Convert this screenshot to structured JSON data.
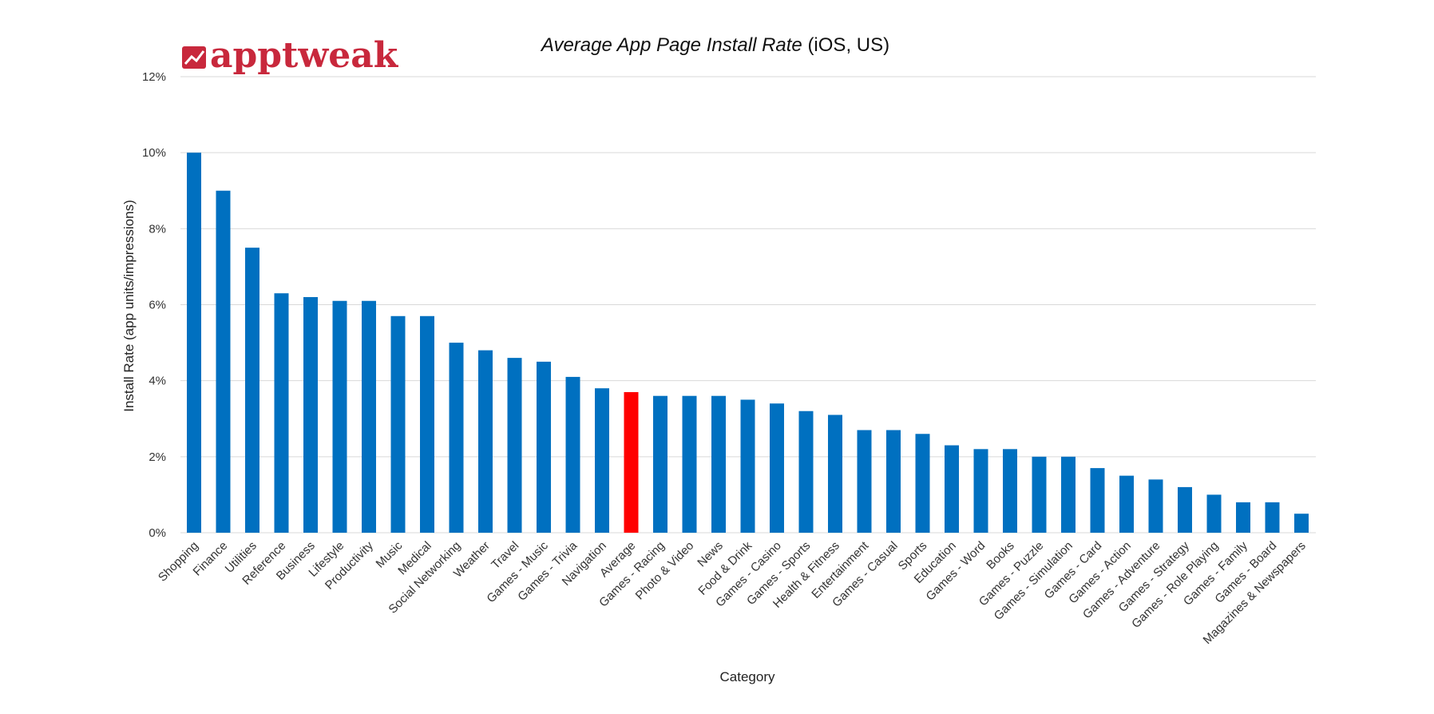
{
  "brand": {
    "name": "apptweak",
    "color": "#c8283c"
  },
  "chart_data": {
    "type": "bar",
    "title_italic": "Average App Page Install Rate",
    "title_rest": "(iOS, US)",
    "xlabel": "Category",
    "ylabel": "Install Rate (app units/impressions)",
    "ylim": [
      0,
      12
    ],
    "yticks": [
      0,
      2,
      4,
      6,
      8,
      10,
      12
    ],
    "ytick_labels": [
      "0%",
      "2%",
      "4%",
      "6%",
      "8%",
      "10%",
      "12%"
    ],
    "bar_color": "#0070c0",
    "highlight_color": "#ff0000",
    "highlight_category": "Average",
    "categories": [
      "Shopping",
      "Finance",
      "Utilities",
      "Reference",
      "Business",
      "Lifestyle",
      "Productivity",
      "Music",
      "Medical",
      "Social Networking",
      "Weather",
      "Travel",
      "Games - Music",
      "Games - Trivia",
      "Navigation",
      "Average",
      "Games - Racing",
      "Photo & Video",
      "News",
      "Food & Drink",
      "Games - Casino",
      "Games - Sports",
      "Health & Fitness",
      "Entertainment",
      "Games - Casual",
      "Sports",
      "Education",
      "Games - Word",
      "Books",
      "Games - Puzzle",
      "Games - Simulation",
      "Games - Card",
      "Games - Action",
      "Games - Adventure",
      "Games - Strategy",
      "Games - Role Playing",
      "Games - Family",
      "Games - Board",
      "Magazines & Newspapers"
    ],
    "values": [
      10.0,
      9.0,
      7.5,
      6.3,
      6.2,
      6.1,
      6.1,
      5.7,
      5.7,
      5.0,
      4.8,
      4.6,
      4.5,
      4.1,
      3.8,
      3.7,
      3.6,
      3.6,
      3.6,
      3.5,
      3.4,
      3.2,
      3.1,
      2.7,
      2.7,
      2.6,
      2.3,
      2.2,
      2.2,
      2.0,
      2.0,
      1.7,
      1.5,
      1.4,
      1.2,
      1.0,
      0.8,
      0.8,
      0.5
    ]
  }
}
